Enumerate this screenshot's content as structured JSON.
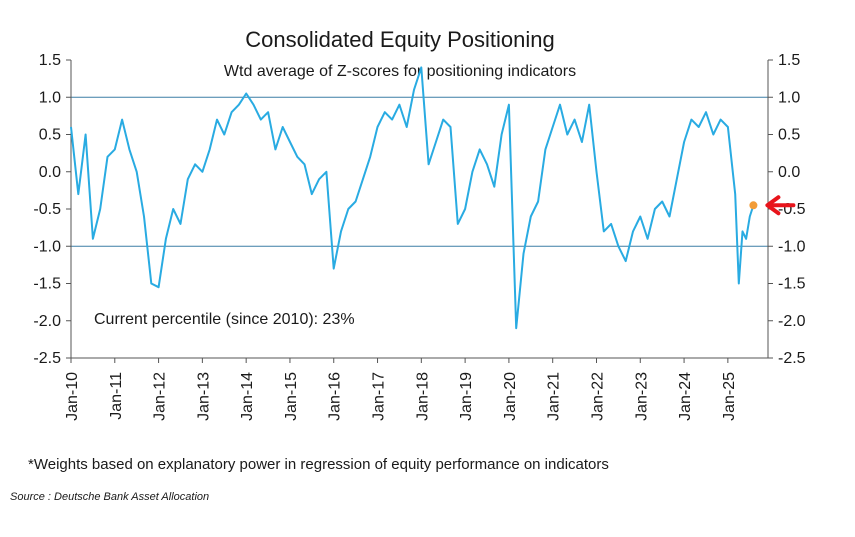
{
  "chart_data": {
    "type": "line",
    "title": "Consolidated Equity Positioning",
    "subtitle": "Wtd average of Z-scores for positioning indicators",
    "annotation": "Current percentile (since 2010): 23%",
    "ylim": [
      -2.5,
      1.5
    ],
    "yticks": [
      "1.5",
      "1.0",
      "0.5",
      "0.0",
      "-0.5",
      "-1.0",
      "-1.5",
      "-2.0",
      "-2.5"
    ],
    "ytick_values": [
      1.5,
      1.0,
      0.5,
      0.0,
      -0.5,
      -1.0,
      -1.5,
      -2.0,
      -2.5
    ],
    "reference_lines": [
      1.0,
      -1.0
    ],
    "x_tick_labels": [
      "Jan-10",
      "Jan-11",
      "Jan-12",
      "Jan-13",
      "Jan-14",
      "Jan-15",
      "Jan-16",
      "Jan-17",
      "Jan-18",
      "Jan-19",
      "Jan-20",
      "Jan-21",
      "Jan-22",
      "Jan-23",
      "Jan-24",
      "Jan-25"
    ],
    "xlim": [
      "2010-01",
      "2025-12"
    ],
    "grid": false,
    "line_color": "#29abe2",
    "ref_line_color": "#3d7fa6",
    "series": [
      {
        "x": [
          "2010-01",
          "2010-03",
          "2010-05",
          "2010-07",
          "2010-09",
          "2010-11",
          "2011-01",
          "2011-03",
          "2011-05",
          "2011-07",
          "2011-09",
          "2011-11",
          "2012-01",
          "2012-03",
          "2012-05",
          "2012-07",
          "2012-09",
          "2012-11",
          "2013-01",
          "2013-03",
          "2013-05",
          "2013-07",
          "2013-09",
          "2013-11",
          "2014-01",
          "2014-03",
          "2014-05",
          "2014-07",
          "2014-09",
          "2014-11",
          "2015-01",
          "2015-03",
          "2015-05",
          "2015-07",
          "2015-09",
          "2015-11",
          "2016-01",
          "2016-03",
          "2016-05",
          "2016-07",
          "2016-09",
          "2016-11",
          "2017-01",
          "2017-03",
          "2017-05",
          "2017-07",
          "2017-09",
          "2017-11",
          "2018-01",
          "2018-03",
          "2018-05",
          "2018-07",
          "2018-09",
          "2018-11",
          "2019-01",
          "2019-03",
          "2019-05",
          "2019-07",
          "2019-09",
          "2019-11",
          "2020-01",
          "2020-03",
          "2020-05",
          "2020-07",
          "2020-09",
          "2020-11",
          "2021-01",
          "2021-03",
          "2021-05",
          "2021-07",
          "2021-09",
          "2021-11",
          "2022-01",
          "2022-03",
          "2022-05",
          "2022-07",
          "2022-09",
          "2022-11",
          "2023-01",
          "2023-03",
          "2023-05",
          "2023-07",
          "2023-09",
          "2023-11",
          "2024-01",
          "2024-03",
          "2024-05",
          "2024-07",
          "2024-09",
          "2024-11",
          "2025-01",
          "2025-03",
          "2025-04",
          "2025-05",
          "2025-06",
          "2025-07",
          "2025-08"
        ],
        "y": [
          0.6,
          -0.3,
          0.5,
          -0.9,
          -0.5,
          0.2,
          0.3,
          0.7,
          0.3,
          0.0,
          -0.6,
          -1.5,
          -1.55,
          -0.9,
          -0.5,
          -0.7,
          -0.1,
          0.1,
          0.0,
          0.3,
          0.7,
          0.5,
          0.8,
          0.9,
          1.05,
          0.9,
          0.7,
          0.8,
          0.3,
          0.6,
          0.4,
          0.2,
          0.1,
          -0.3,
          -0.1,
          0.0,
          -1.3,
          -0.8,
          -0.5,
          -0.4,
          -0.1,
          0.2,
          0.6,
          0.8,
          0.7,
          0.9,
          0.6,
          1.1,
          1.4,
          0.1,
          0.4,
          0.7,
          0.6,
          -0.7,
          -0.5,
          0.0,
          0.3,
          0.1,
          -0.2,
          0.5,
          0.9,
          -2.1,
          -1.1,
          -0.6,
          -0.4,
          0.3,
          0.6,
          0.9,
          0.5,
          0.7,
          0.4,
          0.9,
          0.0,
          -0.8,
          -0.7,
          -1.0,
          -1.2,
          -0.8,
          -0.6,
          -0.9,
          -0.5,
          -0.4,
          -0.6,
          -0.1,
          0.4,
          0.7,
          0.6,
          0.8,
          0.5,
          0.7,
          0.6,
          -0.3,
          -1.5,
          -0.8,
          -0.9,
          -0.6,
          -0.45
        ]
      }
    ],
    "marker": {
      "x": "2025-08",
      "y": -0.45,
      "color": "#f29c38"
    },
    "arrow_color": "#e8141b"
  },
  "footnote": "*Weights based on explanatory power in regression of equity performance on indicators",
  "source": "Source : Deutsche Bank Asset Allocation"
}
